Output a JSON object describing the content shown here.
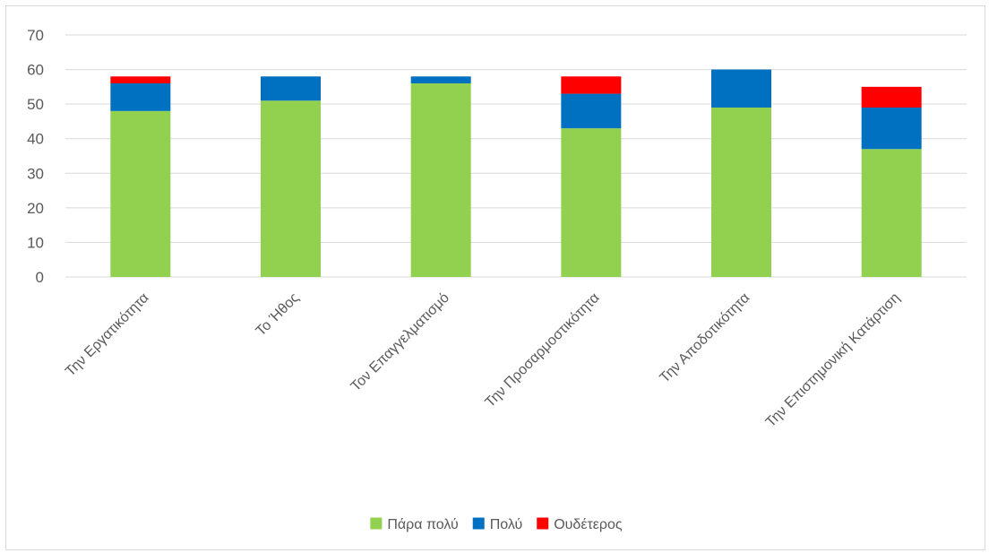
{
  "chart_data": {
    "type": "bar",
    "stacked": true,
    "categories": [
      "Την Εργατικότητα",
      "Το Ήθος",
      "Τον Επαγγελματισμό",
      "Την Προσαρμοστικότητα",
      "Την Αποδοτικότητα",
      "Την Επιστημονική Κατάρτιση"
    ],
    "series": [
      {
        "name": "Πάρα πολύ",
        "color": "#92d050",
        "values": [
          48,
          51,
          56,
          43,
          49,
          37
        ]
      },
      {
        "name": "Πολύ",
        "color": "#0070c0",
        "values": [
          8,
          7,
          2,
          10,
          11,
          12
        ]
      },
      {
        "name": "Ουδέτερος",
        "color": "#ff0000",
        "values": [
          2,
          0,
          0,
          5,
          0,
          6
        ]
      }
    ],
    "ylim": [
      0,
      70
    ],
    "yticks": [
      0,
      10,
      20,
      30,
      40,
      50,
      60,
      70
    ],
    "grid": true,
    "legend_position": "bottom"
  }
}
